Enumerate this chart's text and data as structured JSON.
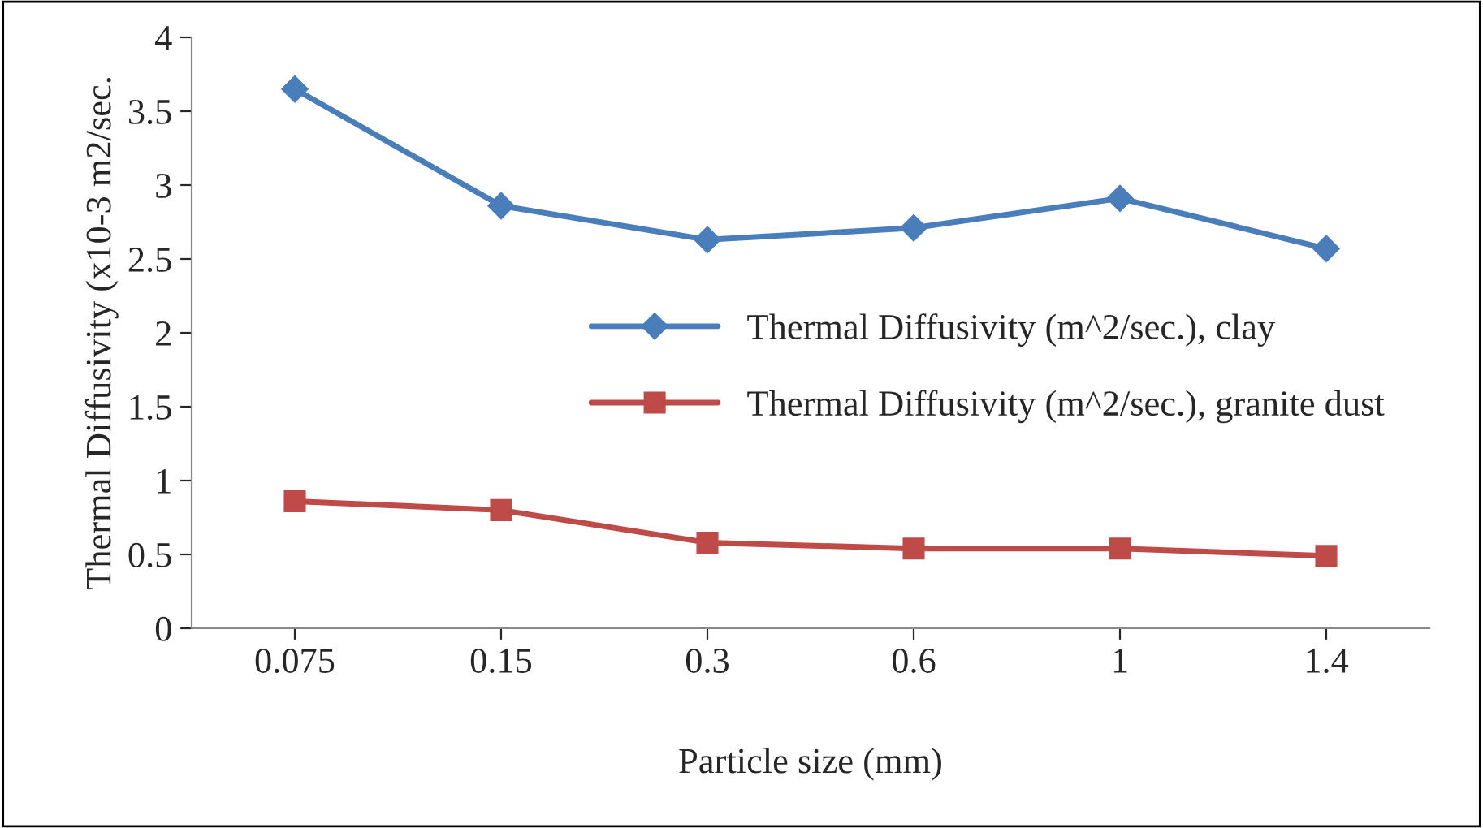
{
  "chart_data": {
    "type": "line",
    "xlabel": "Particle size (mm)",
    "ylabel": "Thermal Diffusivity (x10-3 m2/sec.",
    "categories": [
      "0.075",
      "0.15",
      "0.3",
      "0.6",
      "1",
      "1.4"
    ],
    "series": [
      {
        "name": "Thermal Diffusivity (m^2/sec.), clay",
        "color": "#4a7ebb",
        "marker": "diamond",
        "values": [
          3.65,
          2.86,
          2.63,
          2.71,
          2.91,
          2.57
        ]
      },
      {
        "name": "Thermal Diffusivity (m^2/sec.), granite dust",
        "color": "#be4b48",
        "marker": "square",
        "values": [
          0.86,
          0.8,
          0.58,
          0.54,
          0.54,
          0.49
        ]
      }
    ],
    "ylim": [
      0,
      4
    ],
    "yticks": [
      0,
      0.5,
      1,
      1.5,
      2,
      2.5,
      3,
      3.5,
      4
    ],
    "grid": false,
    "legend": "right",
    "line_style": "solid"
  }
}
